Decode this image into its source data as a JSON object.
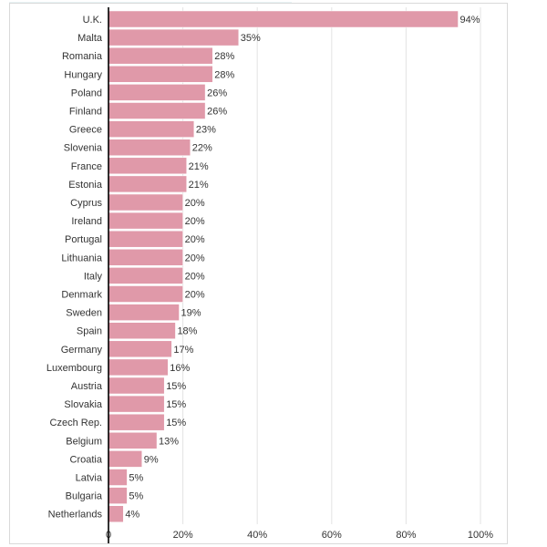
{
  "chart_data": {
    "type": "bar",
    "orientation": "horizontal",
    "categories": [
      "U.K.",
      "Malta",
      "Romania",
      "Hungary",
      "Poland",
      "Finland",
      "Greece",
      "Slovenia",
      "France",
      "Estonia",
      "Cyprus",
      "Ireland",
      "Portugal",
      "Lithuania",
      "Italy",
      "Denmark",
      "Sweden",
      "Spain",
      "Germany",
      "Luxembourg",
      "Austria",
      "Slovakia",
      "Czech Rep.",
      "Belgium",
      "Croatia",
      "Latvia",
      "Bulgaria",
      "Netherlands"
    ],
    "values": [
      94,
      35,
      28,
      28,
      26,
      26,
      23,
      22,
      21,
      21,
      20,
      20,
      20,
      20,
      20,
      20,
      19,
      18,
      17,
      16,
      15,
      15,
      15,
      13,
      9,
      5,
      5,
      4
    ],
    "value_labels": [
      "94%",
      "35%",
      "28%",
      "28%",
      "26%",
      "26%",
      "23%",
      "22%",
      "21%",
      "21%",
      "20%",
      "20%",
      "20%",
      "20%",
      "20%",
      "20%",
      "19%",
      "18%",
      "17%",
      "16%",
      "15%",
      "15%",
      "15%",
      "13%",
      "9%",
      "5%",
      "5%",
      "4%"
    ],
    "xlim": [
      0,
      100
    ],
    "xticks": [
      0,
      20,
      40,
      60,
      80,
      100
    ],
    "xtick_labels": [
      "0",
      "20%",
      "40%",
      "60%",
      "80%",
      "100%"
    ],
    "title": "",
    "xlabel": "",
    "ylabel": "",
    "grid": "vertical",
    "legend": "none",
    "bar_color": "#e099a9"
  }
}
